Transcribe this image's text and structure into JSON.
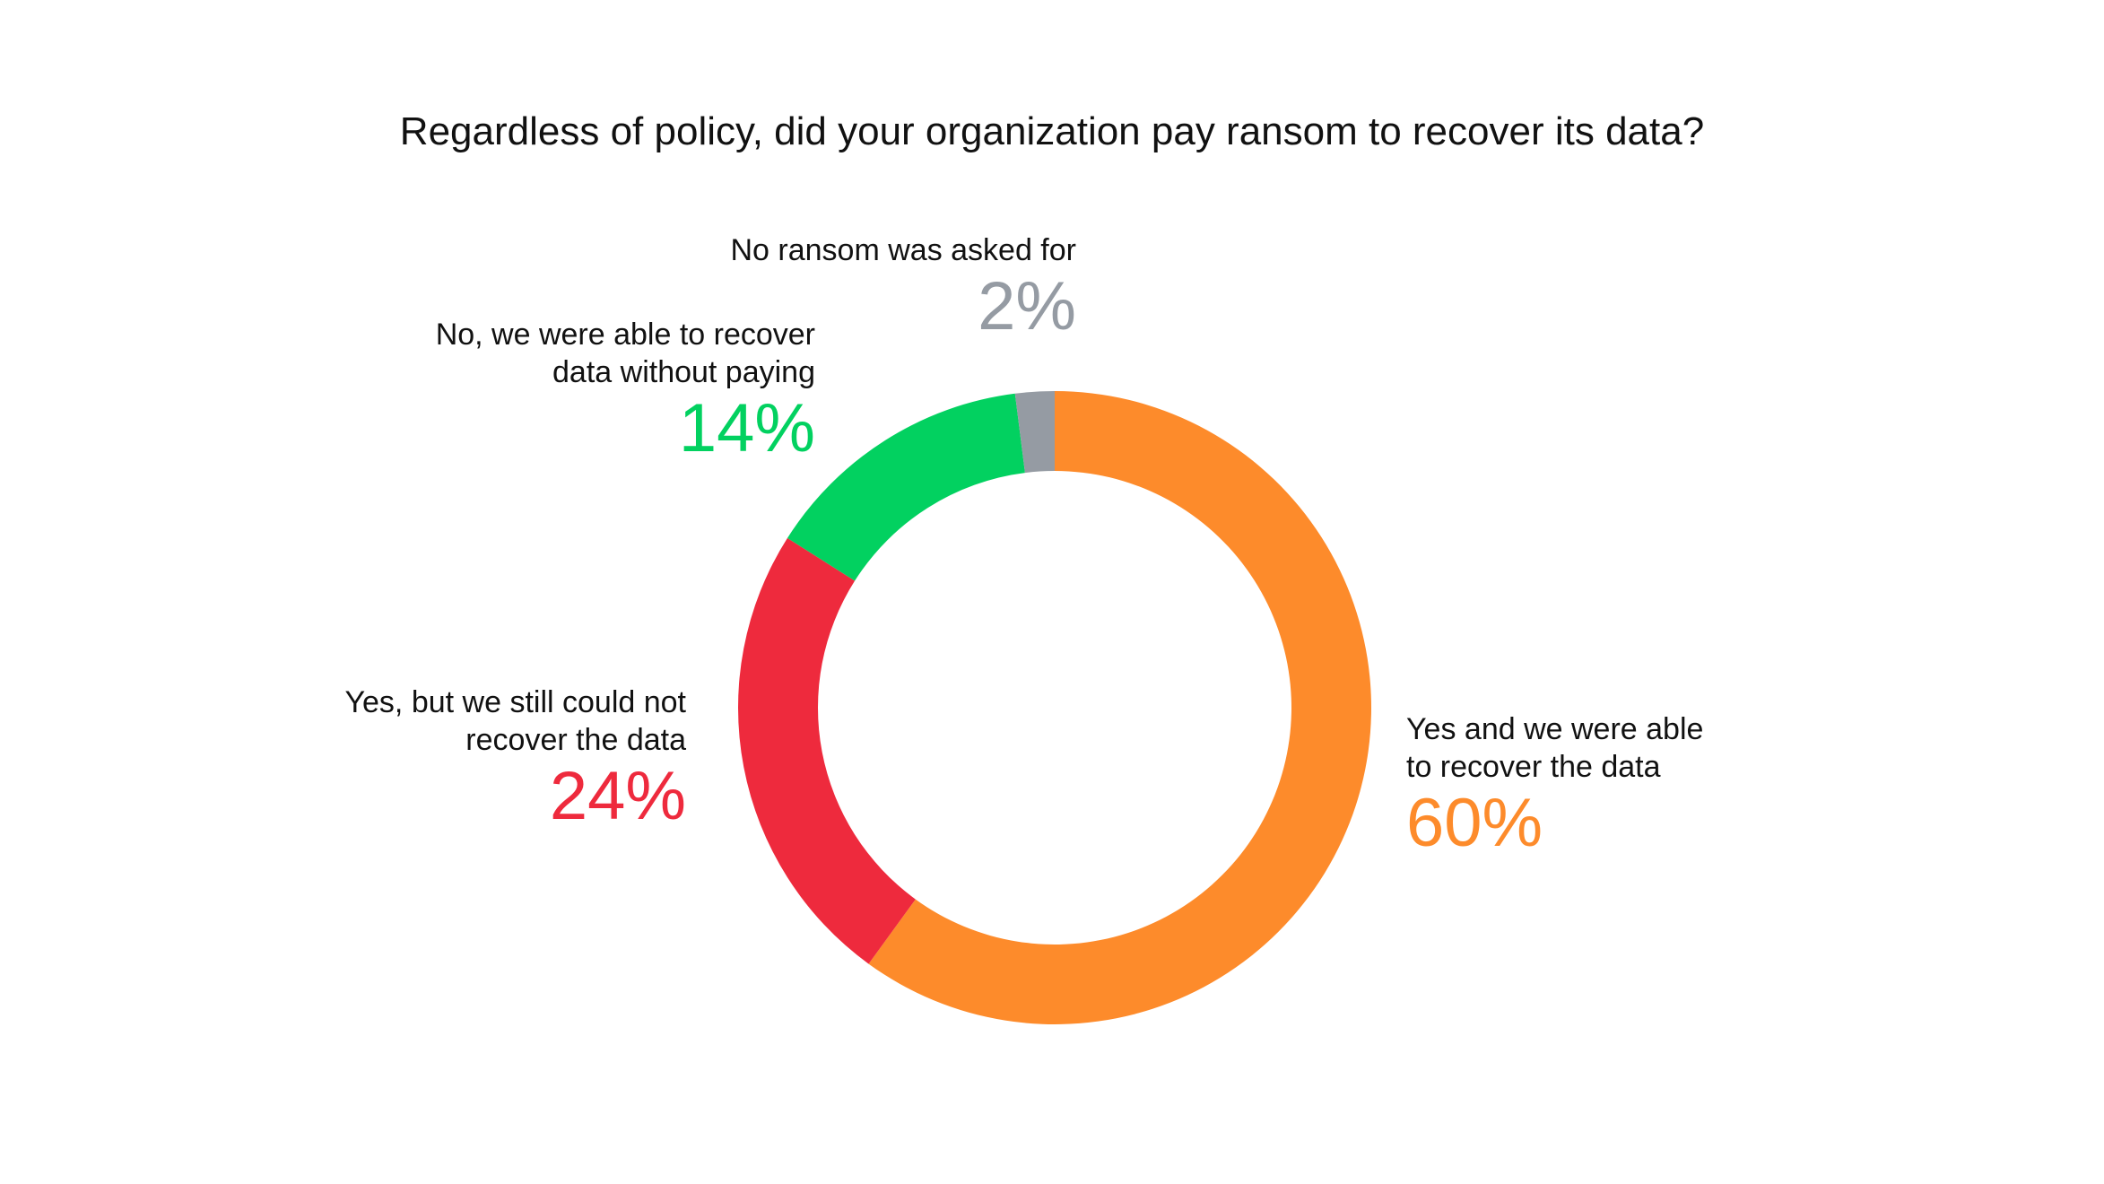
{
  "chart_data": {
    "type": "pie",
    "variant": "donut",
    "title": "Regardless of policy, did your organization pay ransom to recover its data?",
    "slices": [
      {
        "label": "Yes and we were able to recover the data",
        "label_lines": [
          "Yes and we were able",
          "to recover the data"
        ],
        "value": 60,
        "display": "60%",
        "color": "#fd8b2b"
      },
      {
        "label": "Yes, but we still could not recover the data",
        "label_lines": [
          "Yes, but we still could not",
          "recover the data"
        ],
        "value": 24,
        "display": "24%",
        "color": "#ee2a3d"
      },
      {
        "label": "No, we were able to recover data without paying",
        "label_lines": [
          "No, we were able to recover",
          "data without paying"
        ],
        "value": 14,
        "display": "14%",
        "color": "#02d160"
      },
      {
        "label": "No ransom was asked for",
        "label_lines": [
          "No ransom was asked for"
        ],
        "value": 2,
        "display": "2%",
        "color": "#959ba3"
      }
    ],
    "start_angle_deg": 0,
    "direction": "clockwise",
    "legend": "none"
  }
}
